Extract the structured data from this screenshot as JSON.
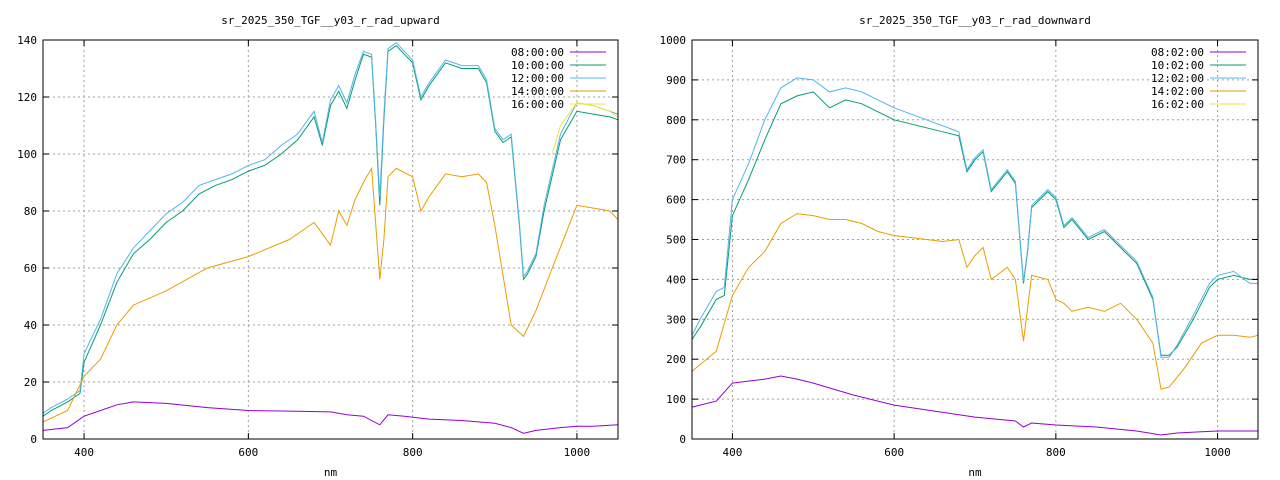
{
  "chart_data": [
    {
      "type": "line",
      "title": "sr_2025_350_TGF__y03_r_rad_upward",
      "xlabel": "nm",
      "ylabel": "",
      "xlim": [
        350,
        1050
      ],
      "ylim": [
        0,
        140
      ],
      "xticks": [
        400,
        600,
        800,
        1000
      ],
      "yticks": [
        0,
        20,
        40,
        60,
        80,
        100,
        120,
        140
      ],
      "grid": true,
      "legend_position": "top-right",
      "series": [
        {
          "name": "08:00:00",
          "color": "#9400d3",
          "x": [
            350,
            380,
            400,
            420,
            440,
            460,
            500,
            550,
            600,
            650,
            700,
            720,
            740,
            760,
            770,
            790,
            820,
            860,
            900,
            920,
            935,
            950,
            980,
            1000,
            1020,
            1050
          ],
          "y": [
            3,
            4,
            8,
            10,
            12,
            13,
            12.5,
            11,
            10,
            9.8,
            9.5,
            8.5,
            8,
            5,
            8.5,
            8,
            7,
            6.5,
            5.5,
            4,
            2,
            3,
            4,
            4.5,
            4.5,
            5
          ]
        },
        {
          "name": "10:00:00",
          "color": "#009e73",
          "x": [
            350,
            360,
            380,
            395,
            400,
            420,
            440,
            460,
            480,
            500,
            520,
            540,
            560,
            580,
            600,
            620,
            640,
            660,
            680,
            690,
            700,
            710,
            720,
            730,
            740,
            750,
            755,
            760,
            765,
            770,
            780,
            790,
            800,
            810,
            820,
            840,
            860,
            880,
            890,
            900,
            910,
            920,
            930,
            935,
            940,
            950,
            960,
            980,
            1000,
            1020,
            1040,
            1050
          ],
          "y": [
            8,
            10,
            13,
            16,
            27,
            40,
            55,
            65,
            70,
            76,
            80,
            86,
            89,
            91,
            94,
            96,
            100,
            105,
            113,
            103,
            117,
            122,
            116,
            126,
            135,
            134,
            110,
            82,
            112,
            136,
            138,
            135,
            132,
            119,
            124,
            132,
            130,
            130,
            125,
            108,
            104,
            106,
            75,
            56,
            58,
            64,
            80,
            105,
            115,
            114,
            113,
            112
          ]
        },
        {
          "name": "12:00:00",
          "color": "#56b4e9",
          "x": [
            350,
            360,
            380,
            395,
            400,
            420,
            440,
            460,
            480,
            500,
            520,
            540,
            560,
            580,
            600,
            620,
            640,
            660,
            680,
            690,
            700,
            710,
            720,
            730,
            740,
            750,
            755,
            760,
            765,
            770,
            780,
            790,
            800,
            810,
            820,
            840,
            860,
            880,
            890,
            900,
            910,
            920,
            930,
            935,
            940,
            950,
            960,
            980,
            1000,
            1020,
            1040,
            1050
          ],
          "y": [
            9,
            11,
            14,
            17,
            30,
            42,
            58,
            67,
            73,
            79,
            83,
            89,
            91,
            93,
            96,
            98,
            103,
            107,
            115,
            104,
            119,
            124,
            118,
            128,
            136,
            135,
            111,
            85,
            114,
            137,
            139,
            136,
            133,
            120,
            125,
            133,
            131,
            131,
            126,
            109,
            105,
            107,
            76,
            57,
            59,
            65,
            82,
            107,
            118,
            117,
            115,
            114
          ]
        },
        {
          "name": "14:00:00",
          "color": "#e69f00",
          "x": [
            350,
            380,
            400,
            420,
            440,
            460,
            500,
            550,
            600,
            650,
            680,
            700,
            710,
            720,
            730,
            740,
            750,
            760,
            765,
            770,
            780,
            800,
            810,
            820,
            840,
            860,
            880,
            890,
            900,
            920,
            935,
            950,
            970,
            1000,
            1020,
            1040,
            1050
          ],
          "y": [
            6,
            10,
            22,
            28,
            40,
            47,
            52,
            60,
            64,
            70,
            76,
            68,
            80,
            75,
            84,
            90,
            95,
            56,
            70,
            92,
            95,
            92,
            80,
            85,
            93,
            92,
            93,
            90,
            75,
            40,
            36,
            45,
            60,
            82,
            81,
            80,
            77
          ]
        },
        {
          "name": "16:00:00",
          "color": "#f0e442",
          "x": [
            970,
            980,
            1000,
            1020,
            1040,
            1050
          ],
          "y": [
            100,
            110,
            118,
            117,
            115,
            113
          ]
        }
      ]
    },
    {
      "type": "line",
      "title": "sr_2025_350_TGF__y03_r_rad_downward",
      "xlabel": "nm",
      "ylabel": "",
      "xlim": [
        350,
        1050
      ],
      "ylim": [
        0,
        1000
      ],
      "xticks": [
        400,
        600,
        800,
        1000
      ],
      "yticks": [
        0,
        100,
        200,
        300,
        400,
        500,
        600,
        700,
        800,
        900,
        1000
      ],
      "grid": true,
      "legend_position": "top-right",
      "series": [
        {
          "name": "08:02:00",
          "color": "#9400d3",
          "x": [
            350,
            380,
            400,
            420,
            440,
            460,
            480,
            500,
            550,
            600,
            650,
            700,
            750,
            760,
            770,
            800,
            850,
            900,
            930,
            950,
            980,
            1000,
            1050
          ],
          "y": [
            80,
            95,
            140,
            145,
            150,
            158,
            150,
            140,
            110,
            85,
            70,
            55,
            45,
            30,
            40,
            35,
            30,
            20,
            10,
            15,
            18,
            20,
            20
          ]
        },
        {
          "name": "10:02:00",
          "color": "#009e73",
          "x": [
            350,
            360,
            380,
            390,
            400,
            420,
            440,
            460,
            480,
            500,
            520,
            540,
            560,
            580,
            600,
            620,
            640,
            660,
            680,
            690,
            700,
            710,
            720,
            740,
            750,
            760,
            765,
            770,
            790,
            800,
            810,
            820,
            840,
            860,
            880,
            900,
            920,
            930,
            940,
            950,
            970,
            990,
            1000,
            1020,
            1040,
            1050
          ],
          "y": [
            250,
            280,
            350,
            360,
            560,
            650,
            750,
            840,
            860,
            870,
            830,
            850,
            840,
            820,
            800,
            790,
            780,
            770,
            760,
            670,
            700,
            720,
            620,
            670,
            640,
            390,
            470,
            580,
            620,
            600,
            530,
            550,
            500,
            520,
            480,
            440,
            350,
            210,
            210,
            230,
            300,
            380,
            400,
            410,
            400,
            400
          ]
        },
        {
          "name": "12:02:00",
          "color": "#56b4e9",
          "x": [
            350,
            360,
            380,
            390,
            400,
            420,
            440,
            460,
            480,
            500,
            520,
            540,
            560,
            580,
            600,
            620,
            640,
            660,
            680,
            690,
            700,
            710,
            720,
            740,
            750,
            760,
            765,
            770,
            790,
            800,
            810,
            820,
            840,
            860,
            880,
            900,
            920,
            930,
            940,
            950,
            970,
            990,
            1000,
            1020,
            1040,
            1050
          ],
          "y": [
            260,
            300,
            370,
            380,
            600,
            690,
            800,
            880,
            905,
            900,
            870,
            880,
            870,
            850,
            830,
            815,
            800,
            785,
            770,
            675,
            705,
            725,
            625,
            675,
            645,
            395,
            475,
            585,
            625,
            605,
            535,
            555,
            505,
            525,
            485,
            445,
            355,
            205,
            205,
            235,
            310,
            390,
            410,
            420,
            390,
            390
          ]
        },
        {
          "name": "14:02:00",
          "color": "#e69f00",
          "x": [
            350,
            380,
            400,
            420,
            440,
            460,
            480,
            500,
            520,
            540,
            560,
            580,
            600,
            620,
            640,
            660,
            680,
            690,
            700,
            710,
            720,
            740,
            750,
            760,
            770,
            790,
            800,
            810,
            820,
            840,
            860,
            880,
            900,
            920,
            930,
            940,
            960,
            980,
            1000,
            1020,
            1040,
            1050
          ],
          "y": [
            170,
            220,
            360,
            430,
            470,
            540,
            565,
            560,
            550,
            550,
            540,
            520,
            510,
            505,
            500,
            495,
            500,
            430,
            460,
            480,
            400,
            430,
            400,
            245,
            410,
            400,
            350,
            340,
            320,
            330,
            320,
            340,
            300,
            240,
            125,
            130,
            180,
            240,
            260,
            260,
            255,
            260
          ]
        },
        {
          "name": "16:02:00",
          "color": "#f0e442",
          "x": [
            350,
            1050
          ],
          "y": [
            0,
            0
          ]
        }
      ]
    }
  ]
}
